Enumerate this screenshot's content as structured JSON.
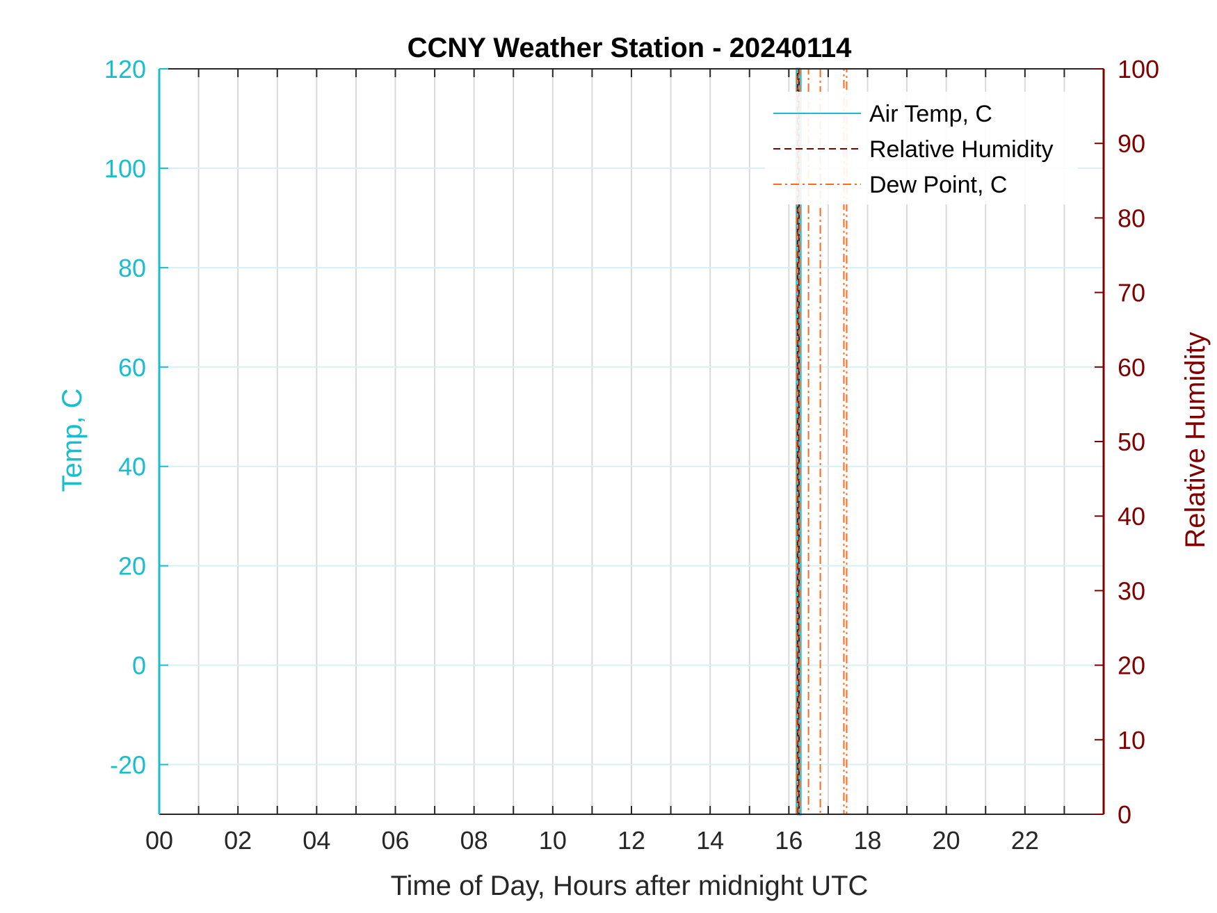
{
  "chart_data": {
    "type": "line",
    "title": "CCNY Weather Station - 20240114",
    "xlabel": "Time of Day, Hours after midnight UTC",
    "ylabel_left": "Temp, C",
    "ylabel_right": "Relative Humidity",
    "xlim": [
      0,
      24
    ],
    "ylim_left": [
      -30,
      120
    ],
    "ylim_right": [
      0,
      100
    ],
    "x_ticks": [
      "00",
      "02",
      "04",
      "06",
      "08",
      "10",
      "12",
      "14",
      "16",
      "18",
      "20",
      "22"
    ],
    "x_tick_values": [
      0,
      2,
      4,
      6,
      8,
      10,
      12,
      14,
      16,
      18,
      20,
      22
    ],
    "left_ticks": [
      -20,
      0,
      20,
      40,
      60,
      80,
      100,
      120
    ],
    "right_ticks": [
      0,
      10,
      20,
      30,
      40,
      50,
      60,
      70,
      80,
      90,
      100
    ],
    "grid": true,
    "legend_position": "top-right",
    "series": [
      {
        "name": "Air Temp, C",
        "axis": "left",
        "color": "#17becf",
        "style": "solid",
        "x": [
          16.2,
          16.2,
          16.23,
          16.23,
          16.25,
          16.25,
          16.27,
          16.27,
          16.3,
          16.3
        ],
        "y": [
          -30,
          120,
          120,
          -30,
          -30,
          120,
          120,
          -30,
          -30,
          120
        ]
      },
      {
        "name": "Relative Humidity",
        "axis": "right",
        "color": "#800000",
        "style": "dashed",
        "x": [
          16.22,
          16.22,
          16.26,
          16.26
        ],
        "y": [
          0,
          100,
          100,
          0
        ]
      },
      {
        "name": "Dew Point, C",
        "axis": "left",
        "color": "#ff6a1a",
        "style": "dashdot",
        "x": [
          16.2,
          16.2,
          16.28,
          16.28,
          16.5,
          16.5,
          16.8,
          16.8,
          17.4,
          17.4,
          17.47,
          17.47
        ],
        "y": [
          -30,
          120,
          120,
          -30,
          -30,
          120,
          120,
          -30,
          -30,
          120,
          120,
          -30
        ]
      }
    ]
  }
}
